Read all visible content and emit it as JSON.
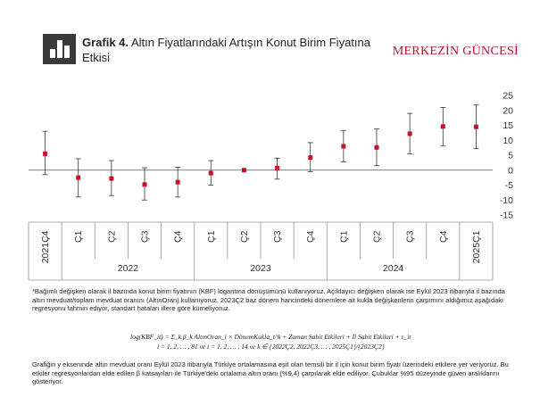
{
  "header": {
    "figure_label": "Grafik 4.",
    "title": "Altın Fiyatlarındaki Artışın Konut Birim Fiyatına Etkisi",
    "brand": "MERKEZİN GÜNCESİ"
  },
  "chart_data": {
    "type": "scatter",
    "title": "Altın Fiyatlarındaki Artışın Konut Birim Fiyatına Etkisi",
    "categories": [
      "2021Ç4",
      "Ç1",
      "Ç2",
      "Ç3",
      "Ç4",
      "Ç1",
      "Ç2",
      "Ç3",
      "Ç4",
      "Ç1",
      "Ç2",
      "Ç3",
      "Ç4",
      "2025Ç1"
    ],
    "groups": [
      {
        "label": "2022",
        "from": 1,
        "to": 4
      },
      {
        "label": "2023",
        "from": 5,
        "to": 8
      },
      {
        "label": "2024",
        "from": 9,
        "to": 12
      }
    ],
    "series": [
      {
        "values": [
          5.5,
          -2.5,
          -2.8,
          -4.8,
          -4.0,
          -1.0,
          0.0,
          0.7,
          4.2,
          8.0,
          7.6,
          12.2,
          14.6,
          14.5
        ],
        "lower": [
          -1.5,
          -9.0,
          -8.5,
          -10.0,
          -9.0,
          -5.0,
          0.0,
          -3.0,
          -0.5,
          2.8,
          1.5,
          5.5,
          8.2,
          7.2
        ],
        "upper": [
          13.0,
          3.8,
          3.2,
          0.8,
          1.0,
          3.2,
          0.0,
          4.0,
          9.2,
          13.3,
          13.8,
          19.0,
          21.0,
          21.8
        ]
      }
    ],
    "ylim": [
      -15,
      25
    ],
    "yticks": [
      -15,
      -10,
      -5,
      0,
      5,
      10,
      15,
      20,
      25
    ],
    "y_axis_side": "right",
    "grid": false,
    "colors": {
      "point": "#c8102e",
      "whisker": "#333333",
      "axis": "#555555"
    }
  },
  "notes": {
    "footnote": "*Bağımlı değişken olarak il bazında konut birim fiyatının (KBF) logaritma dönüşümünü kullanıyoruz. Açıklayıcı değişken olarak ise Eylül 2023 itibarıyla il bazında altın mevduat/toplam mevduat oranını (AltınOran) kullanıyoruz. 2023Ç2 baz dönem haricindeki dönemlere ait kukla değişkenlerin çarpımını aldığımız aşağıdaki regresyonu tahmin ediyor, standart hataları illere göre kümeliyoruz.",
    "formula_line1": "log(KBF_it) = Σ_k β_k AltınOran_i × DönemKukla_t^k + Zaman Sabit Etkileri + İl Sabit Etkileri + ε_it",
    "formula_line2": "i = 1, 2, … , 81 ve t = 1, 2, … , 14 ve k ∈ {2022Ç2, 2022Ç3, … , 2025Ç1}/{2023Ç2}",
    "explanation": "Grafiğin y ekseninde altın mevduat oranı Eylül 2023 itibarıyla Türkiye ortalamasına eşit olan temsili bir il için konut birim fiyatı üzerindeki etkilere yer veriyoruz. Bu etkiler regresyonlardan elde edilen β katsayıları ile Türkiye'deki ortalama altın oranı (%9,4) çarpılarak elde ediliyor. Çubuklar %95 düzeyinde güven aralıklarını gösteriyor."
  }
}
